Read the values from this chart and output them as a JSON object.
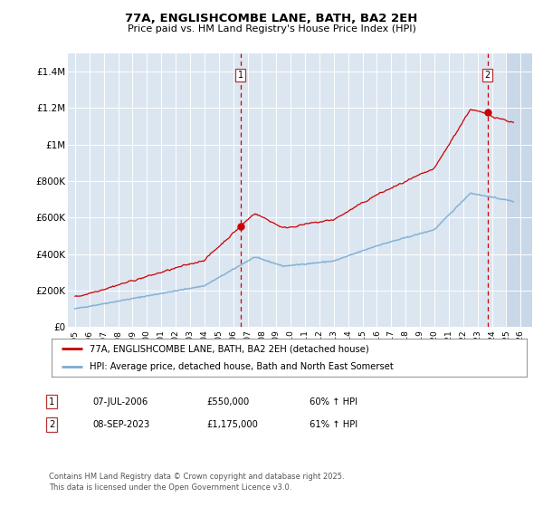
{
  "title_line1": "77A, ENGLISHCOMBE LANE, BATH, BA2 2EH",
  "title_line2": "Price paid vs. HM Land Registry's House Price Index (HPI)",
  "bg_color": "#dce6f1",
  "red_color": "#cc0000",
  "blue_color": "#7aadd4",
  "ylim": [
    0,
    1500000
  ],
  "yticks": [
    0,
    200000,
    400000,
    600000,
    800000,
    1000000,
    1200000,
    1400000
  ],
  "ytick_labels": [
    "£0",
    "£200K",
    "£400K",
    "£600K",
    "£800K",
    "£1M",
    "£1.2M",
    "£1.4M"
  ],
  "sale1_x": 2006.52,
  "sale1_y": 550000,
  "sale1_label": "1",
  "sale2_x": 2023.69,
  "sale2_y": 1175000,
  "sale2_label": "2",
  "legend_line1": "77A, ENGLISHCOMBE LANE, BATH, BA2 2EH (detached house)",
  "legend_line2": "HPI: Average price, detached house, Bath and North East Somerset",
  "annotation1_date": "07-JUL-2006",
  "annotation1_price": "£550,000",
  "annotation1_hpi": "60% ↑ HPI",
  "annotation2_date": "08-SEP-2023",
  "annotation2_price": "£1,175,000",
  "annotation2_hpi": "61% ↑ HPI",
  "footnote": "Contains HM Land Registry data © Crown copyright and database right 2025.\nThis data is licensed under the Open Government Licence v3.0.",
  "hatch_start_year": 2025.0,
  "xlim_left": 1994.5,
  "xlim_right": 2026.8
}
